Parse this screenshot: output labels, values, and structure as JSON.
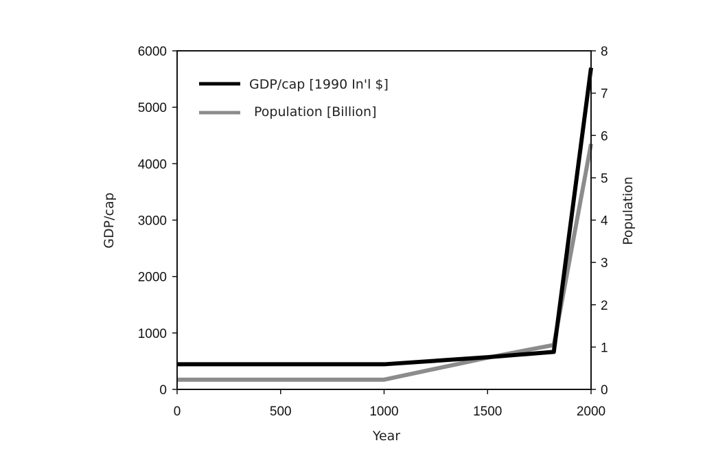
{
  "chart_data": {
    "type": "line",
    "xlabel": "Year",
    "ylabel_left": "GDP/cap",
    "ylabel_right": "Population",
    "xlim": [
      0,
      2000
    ],
    "ylim_left": [
      0,
      6000
    ],
    "ylim_right": [
      0,
      8
    ],
    "x_ticks": [
      0,
      500,
      1000,
      1500,
      2000
    ],
    "y_left_ticks": [
      0,
      1000,
      2000,
      3000,
      4000,
      5000,
      6000
    ],
    "y_right_ticks": [
      0,
      1,
      2,
      3,
      4,
      5,
      6,
      7,
      8
    ],
    "grid": false,
    "legend_position": "top-left",
    "series": [
      {
        "name": "GDP/cap [1990 In'l $]",
        "axis": "left",
        "color": "#000000",
        "x": [
          0,
          1000,
          1500,
          1820,
          2000
        ],
        "y": [
          445,
          445,
          570,
          665,
          5700
        ]
      },
      {
        "name": "Population [Billion]",
        "axis": "right",
        "color": "#8c8c8c",
        "x": [
          0,
          1000,
          1500,
          1820,
          2000
        ],
        "y": [
          0.23,
          0.23,
          0.75,
          1.05,
          5.8
        ]
      }
    ]
  }
}
